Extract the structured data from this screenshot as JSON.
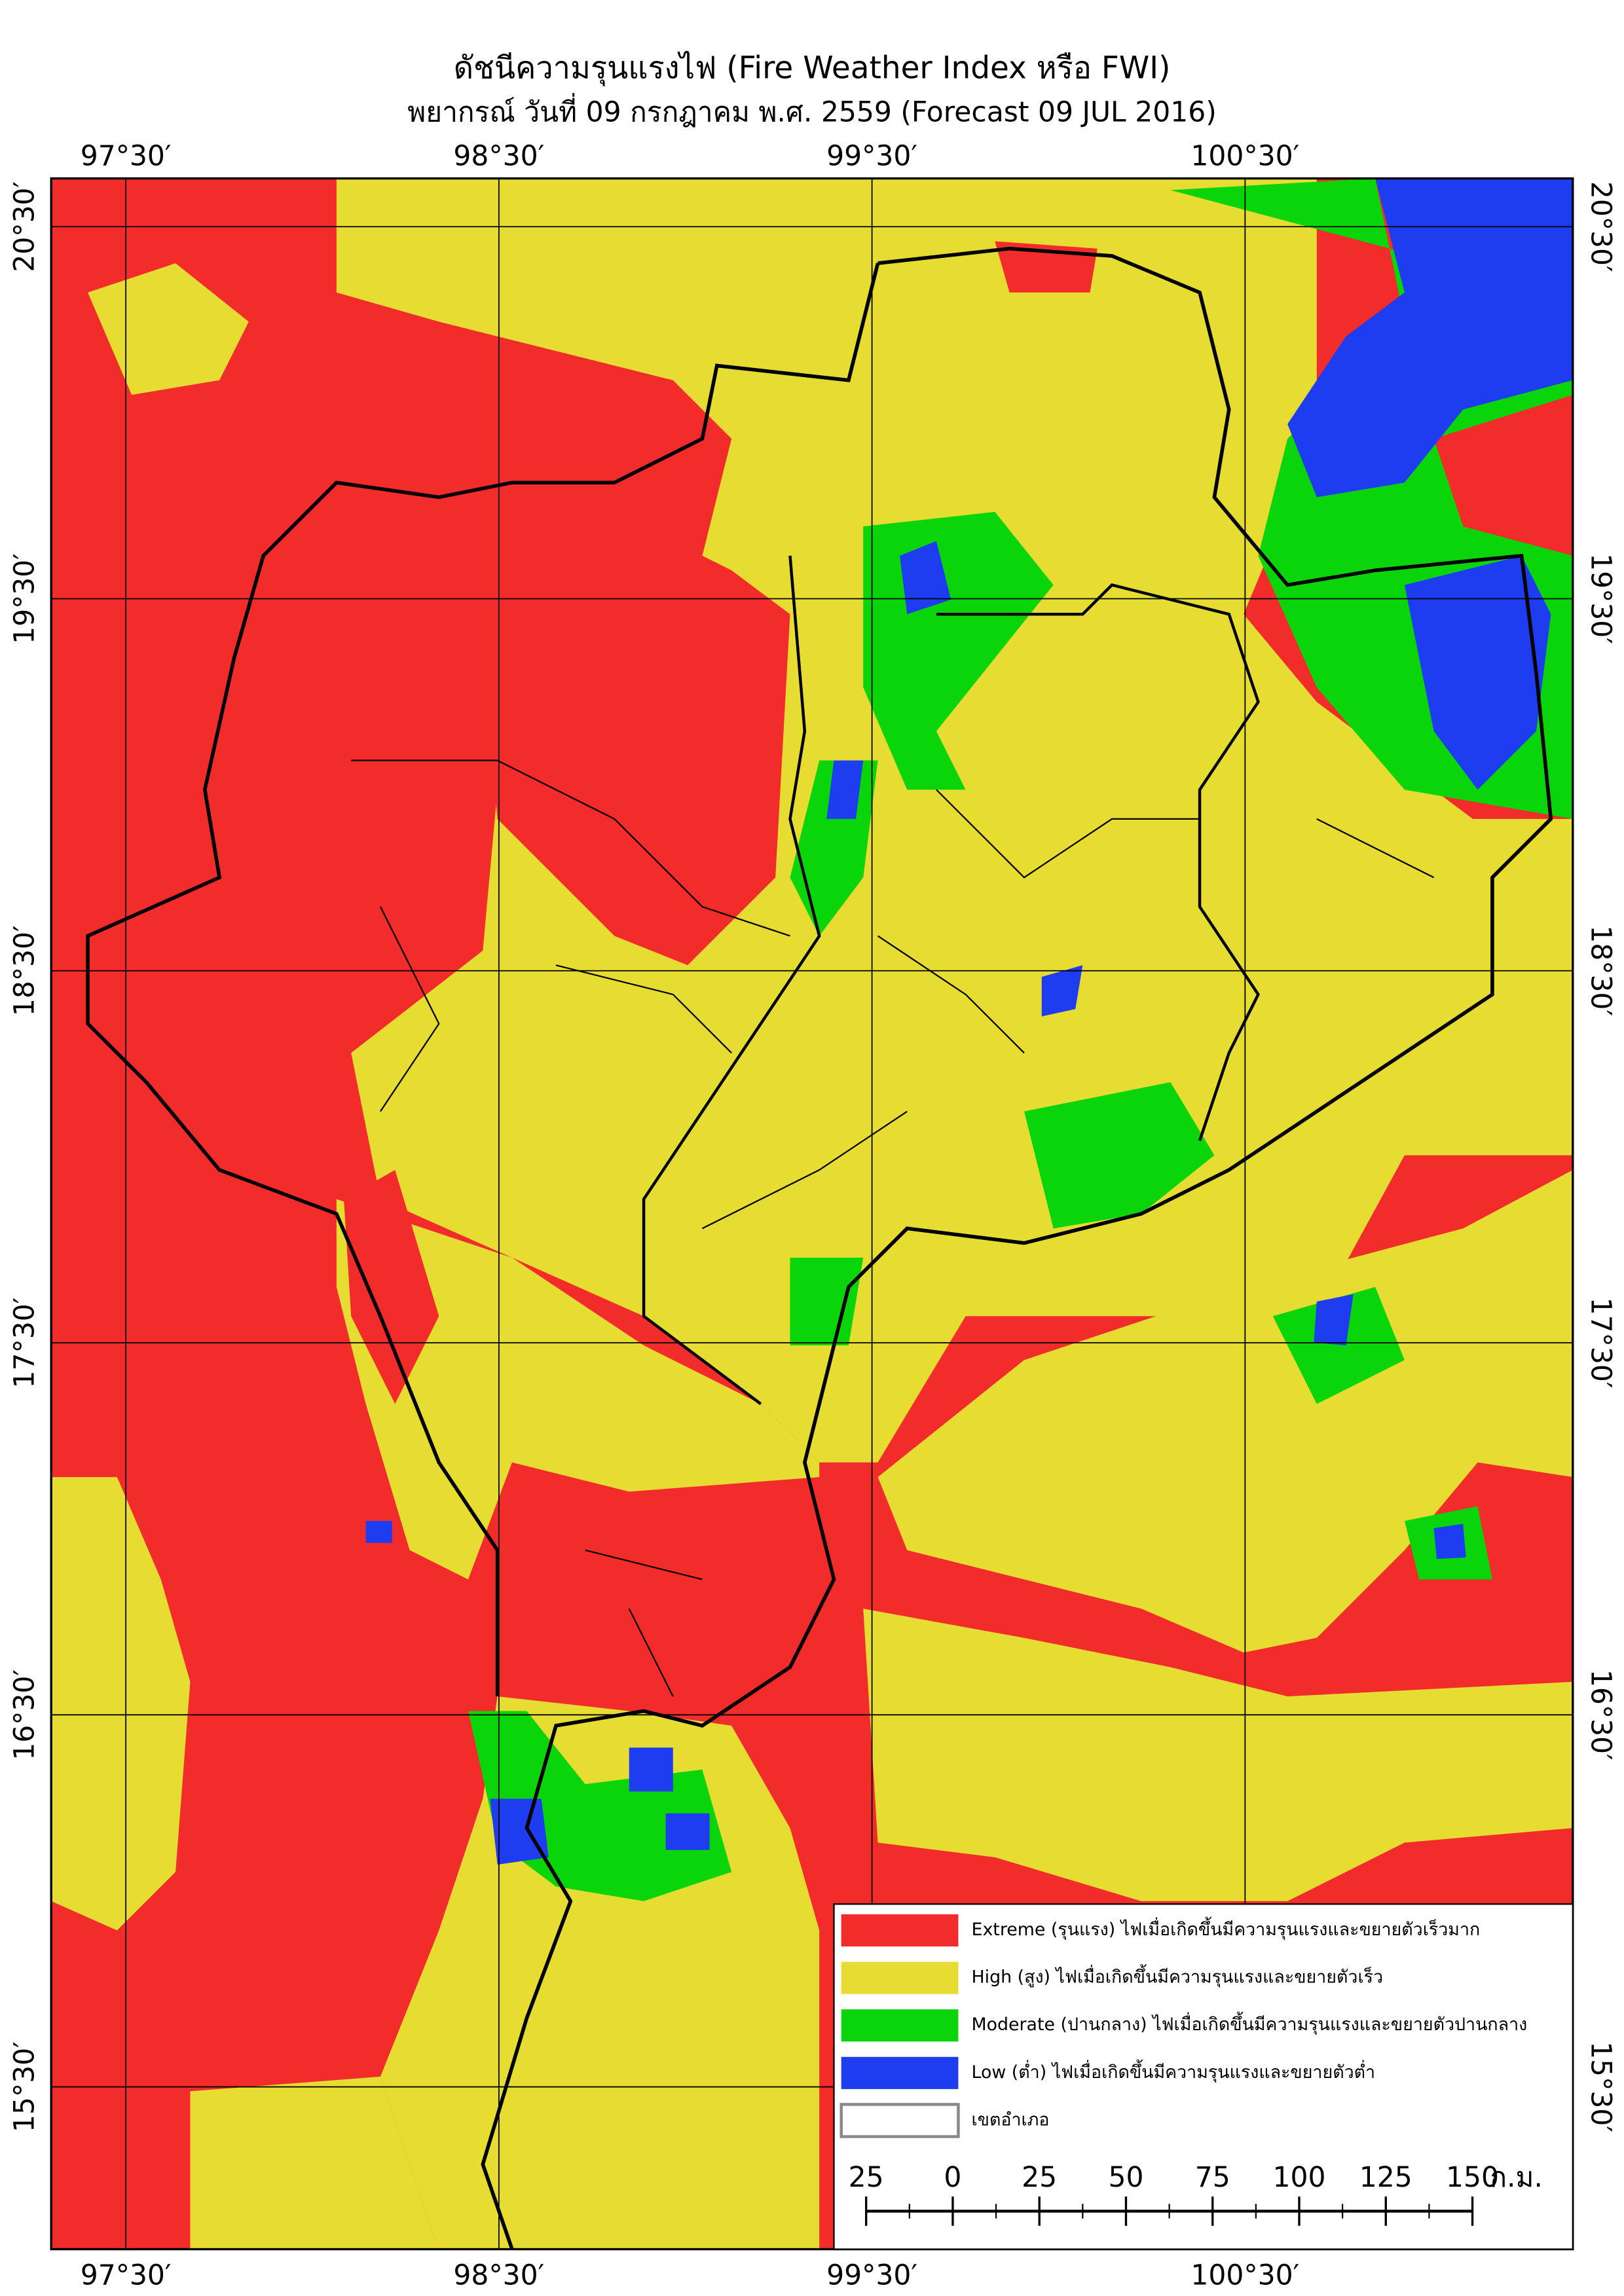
{
  "header": {
    "title": "ดัชนีความรุนแรงไฟ (Fire Weather Index หรือ FWI)",
    "subtitle": "พยากรณ์ วันที่ 09 กรกฎาคม พ.ศ. 2559 (Forecast 09 JUL 2016)"
  },
  "grid": {
    "longitudes": [
      "97°30′",
      "98°30′",
      "99°30′",
      "100°30′"
    ],
    "latitudes": [
      "20°30′",
      "19°30′",
      "18°30′",
      "17°30′",
      "16°30′",
      "15°30′"
    ]
  },
  "legend": {
    "items": [
      {
        "label": "Extreme (รุนแรง) ไฟเมื่อเกิดขึ้นมีความรุนแรงและขยายตัวเร็วมาก",
        "color": "#f22b2b"
      },
      {
        "label": "High (สูง) ไฟเมื่อเกิดขึ้นมีความรุนแรงและขยายตัวเร็ว",
        "color": "#e6dc32"
      },
      {
        "label": "Moderate (ปานกลาง) ไฟเมื่อเกิดขึ้นมีความรุนแรงและขยายตัวปานกลาง",
        "color": "#0ad40a"
      },
      {
        "label": "Low (ต่ำ) ไฟเมื่อเกิดขึ้นมีความรุนแรงและขยายตัวต่ำ",
        "color": "#1e3cf0"
      },
      {
        "label": "เขตอำเภอ",
        "color": "#ffffff"
      }
    ]
  },
  "scale_bar": {
    "labels": [
      "25",
      "0",
      "25",
      "50",
      "75",
      "100",
      "125",
      "150"
    ],
    "unit": "ก.ม."
  }
}
